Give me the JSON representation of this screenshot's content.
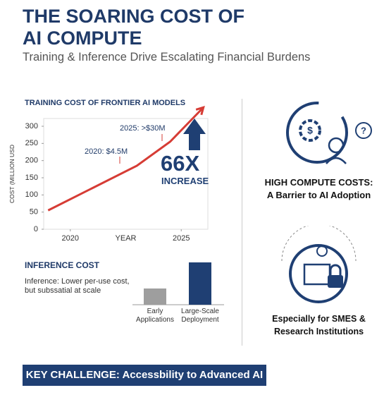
{
  "header": {
    "title": "THE SOARING COST OF AI COMPUTE",
    "subtitle": "Training & Inference Drive Escalating Financial Burdens"
  },
  "chart_data": [
    {
      "type": "line",
      "title": "TRAINING COST OF FRONTIER AI MODELS",
      "x_label": "YEAR",
      "y_label": "COST (MILLION USD",
      "x": [
        2019,
        2021,
        2023,
        2024.5,
        2026
      ],
      "values": [
        55,
        120,
        185,
        255,
        355
      ],
      "color": "#d63c35",
      "xlim": [
        2018.8,
        2026.2
      ],
      "ylim": [
        0,
        300
      ],
      "xticks": [
        2020,
        2025
      ],
      "yticks": [
        0,
        50,
        100,
        150,
        200,
        250,
        300
      ],
      "annotations": [
        "2020: $4.5M",
        "2025: >$30M",
        "66X",
        "INCREASE"
      ]
    },
    {
      "type": "bar",
      "title": "INFERENCE COST",
      "subtitle": "Inference: Lower per-use cost, but subssatial at scale",
      "categories": [
        "Early Applications",
        "Large-Scale Deployment"
      ],
      "values": [
        23,
        60
      ],
      "colors": [
        "#9e9e9e",
        "#1f3f73"
      ],
      "ylim": [
        0,
        60
      ]
    }
  ],
  "panel": {
    "heading": "HIGH COMPUTE COSTS:",
    "text": "A Barrier to AI Adoption",
    "note": "Especially for SMES & Research Institutions"
  },
  "footer": {
    "text": "KEY CHALLENGE: Accessbility to Advanced AI"
  }
}
